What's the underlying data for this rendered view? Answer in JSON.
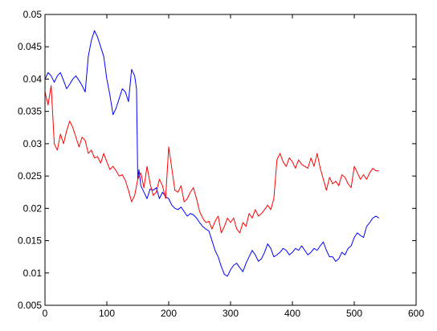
{
  "chart_data": {
    "type": "line",
    "title": "",
    "xlabel": "",
    "ylabel": "",
    "xlim": [
      0,
      600
    ],
    "ylim": [
      0.005,
      0.05
    ],
    "grid": false,
    "x_ticks": [
      0,
      100,
      200,
      300,
      400,
      500,
      600
    ],
    "x_tick_labels": [
      "0",
      "100",
      "200",
      "300",
      "400",
      "500",
      "600"
    ],
    "y_ticks": [
      0.005,
      0.01,
      0.015,
      0.02,
      0.025,
      0.03,
      0.035,
      0.04,
      0.045,
      0.05
    ],
    "y_tick_labels": [
      "0.005",
      "0.01",
      "0.015",
      "0.02",
      "0.025",
      "0.03",
      "0.035",
      "0.04",
      "0.045",
      "0.05"
    ],
    "series": [
      {
        "color": "#0000ff",
        "x": [
          0,
          5,
          10,
          15,
          20,
          25,
          30,
          35,
          40,
          45,
          50,
          55,
          60,
          65,
          70,
          75,
          80,
          85,
          90,
          95,
          100,
          105,
          110,
          115,
          120,
          125,
          130,
          135,
          140,
          145,
          148,
          150,
          152,
          155,
          160,
          165,
          170,
          175,
          180,
          185,
          190,
          195,
          200,
          205,
          210,
          215,
          220,
          225,
          230,
          235,
          240,
          245,
          250,
          255,
          260,
          265,
          270,
          275,
          280,
          285,
          290,
          295,
          300,
          305,
          310,
          315,
          320,
          325,
          330,
          335,
          340,
          345,
          350,
          355,
          360,
          365,
          370,
          375,
          380,
          385,
          390,
          395,
          400,
          405,
          410,
          415,
          420,
          425,
          430,
          435,
          440,
          445,
          450,
          455,
          460,
          465,
          470,
          475,
          480,
          485,
          490,
          495,
          500,
          505,
          510,
          515,
          520,
          525,
          530,
          535,
          540
        ],
        "y": [
          0.04,
          0.041,
          0.0405,
          0.0395,
          0.0405,
          0.041,
          0.0398,
          0.0385,
          0.0392,
          0.04,
          0.0405,
          0.0398,
          0.039,
          0.038,
          0.0435,
          0.046,
          0.0475,
          0.0465,
          0.045,
          0.0435,
          0.04,
          0.0375,
          0.0345,
          0.0355,
          0.037,
          0.0385,
          0.038,
          0.0365,
          0.0415,
          0.0405,
          0.0385,
          0.0245,
          0.026,
          0.0235,
          0.0225,
          0.0215,
          0.023,
          0.0228,
          0.0232,
          0.0215,
          0.0225,
          0.0218,
          0.0215,
          0.0205,
          0.02,
          0.0198,
          0.0202,
          0.0195,
          0.0188,
          0.0192,
          0.019,
          0.0185,
          0.0178,
          0.0172,
          0.0168,
          0.0165,
          0.015,
          0.0135,
          0.0125,
          0.011,
          0.0098,
          0.0095,
          0.0105,
          0.0112,
          0.0115,
          0.0108,
          0.0102,
          0.0115,
          0.0125,
          0.0135,
          0.0128,
          0.0118,
          0.0122,
          0.0132,
          0.0145,
          0.0138,
          0.0125,
          0.0128,
          0.0132,
          0.0138,
          0.0135,
          0.0128,
          0.0132,
          0.0138,
          0.0135,
          0.0142,
          0.0135,
          0.0128,
          0.0132,
          0.0138,
          0.0135,
          0.0142,
          0.0148,
          0.0135,
          0.0125,
          0.0125,
          0.0118,
          0.0122,
          0.0132,
          0.0128,
          0.0138,
          0.0142,
          0.0155,
          0.0162,
          0.0158,
          0.0155,
          0.0172,
          0.0178,
          0.0185,
          0.0188,
          0.0185
        ]
      },
      {
        "color": "#ff0000",
        "x": [
          0,
          5,
          10,
          15,
          20,
          25,
          30,
          35,
          40,
          45,
          50,
          55,
          60,
          65,
          70,
          75,
          80,
          85,
          90,
          95,
          100,
          105,
          110,
          115,
          120,
          125,
          130,
          135,
          140,
          145,
          150,
          155,
          160,
          165,
          170,
          175,
          180,
          185,
          190,
          195,
          200,
          205,
          210,
          215,
          220,
          225,
          230,
          235,
          240,
          245,
          250,
          255,
          260,
          265,
          270,
          275,
          280,
          285,
          290,
          295,
          300,
          305,
          310,
          315,
          320,
          325,
          330,
          335,
          340,
          345,
          350,
          355,
          360,
          365,
          370,
          375,
          380,
          385,
          390,
          395,
          400,
          405,
          410,
          415,
          420,
          425,
          430,
          435,
          440,
          445,
          450,
          455,
          460,
          465,
          470,
          475,
          480,
          485,
          490,
          495,
          500,
          505,
          510,
          515,
          520,
          525,
          530,
          535,
          540
        ],
        "y": [
          0.038,
          0.036,
          0.039,
          0.03,
          0.029,
          0.0315,
          0.03,
          0.032,
          0.0335,
          0.0325,
          0.031,
          0.0295,
          0.031,
          0.0305,
          0.0285,
          0.029,
          0.0278,
          0.028,
          0.027,
          0.0285,
          0.0272,
          0.026,
          0.0265,
          0.0258,
          0.025,
          0.0252,
          0.0243,
          0.0228,
          0.021,
          0.022,
          0.0245,
          0.0255,
          0.0232,
          0.0265,
          0.0238,
          0.022,
          0.0225,
          0.0245,
          0.0235,
          0.0215,
          0.0295,
          0.0262,
          0.0228,
          0.0225,
          0.0235,
          0.021,
          0.0215,
          0.0225,
          0.0232,
          0.0215,
          0.0195,
          0.0185,
          0.0178,
          0.018,
          0.0168,
          0.018,
          0.0188,
          0.0162,
          0.0172,
          0.0185,
          0.0178,
          0.0185,
          0.0168,
          0.0162,
          0.0178,
          0.0172,
          0.0192,
          0.0185,
          0.0198,
          0.0188,
          0.0192,
          0.0198,
          0.0205,
          0.0198,
          0.0215,
          0.0275,
          0.0285,
          0.0272,
          0.0265,
          0.0278,
          0.0272,
          0.0262,
          0.0275,
          0.0268,
          0.0265,
          0.0262,
          0.0278,
          0.0265,
          0.0285,
          0.0262,
          0.0245,
          0.0228,
          0.0248,
          0.0238,
          0.0242,
          0.0235,
          0.0252,
          0.0248,
          0.0238,
          0.0232,
          0.0265,
          0.0255,
          0.0245,
          0.0252,
          0.0245,
          0.0255,
          0.0262,
          0.0258,
          0.0258
        ]
      }
    ]
  }
}
